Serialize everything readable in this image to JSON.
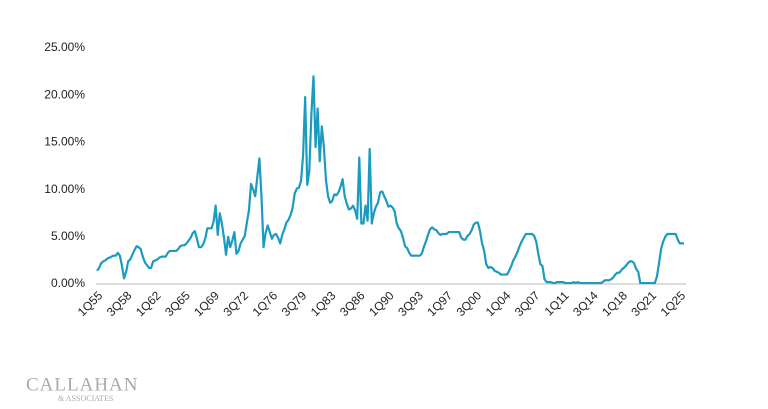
{
  "chart_data": {
    "type": "line",
    "categories": [
      "1Q55",
      null,
      null,
      null,
      null,
      null,
      null,
      null,
      null,
      null,
      null,
      null,
      null,
      null,
      "3Q58",
      null,
      null,
      null,
      null,
      null,
      null,
      null,
      null,
      null,
      null,
      null,
      null,
      null,
      "1Q62",
      null,
      null,
      null,
      null,
      null,
      null,
      null,
      null,
      null,
      null,
      null,
      null,
      null,
      "3Q65",
      null,
      null,
      null,
      null,
      null,
      null,
      null,
      null,
      null,
      null,
      null,
      null,
      null,
      "1Q69",
      null,
      null,
      null,
      null,
      null,
      null,
      null,
      null,
      null,
      null,
      null,
      null,
      null,
      "3Q72",
      null,
      null,
      null,
      null,
      null,
      null,
      null,
      null,
      null,
      null,
      null,
      null,
      null,
      "1Q76",
      null,
      null,
      null,
      null,
      null,
      null,
      null,
      null,
      null,
      null,
      null,
      null,
      null,
      "3Q79",
      null,
      null,
      null,
      null,
      null,
      null,
      null,
      null,
      null,
      null,
      null,
      null,
      null,
      "1Q83",
      null,
      null,
      null,
      null,
      null,
      null,
      null,
      null,
      null,
      null,
      null,
      null,
      null,
      "3Q86",
      null,
      null,
      null,
      null,
      null,
      null,
      null,
      null,
      null,
      null,
      null,
      null,
      null,
      "1Q90",
      null,
      null,
      null,
      null,
      null,
      null,
      null,
      null,
      null,
      null,
      null,
      null,
      null,
      "3Q93",
      null,
      null,
      null,
      null,
      null,
      null,
      null,
      null,
      null,
      null,
      null,
      null,
      null,
      "1Q97",
      null,
      null,
      null,
      null,
      null,
      null,
      null,
      null,
      null,
      null,
      null,
      null,
      null,
      "3Q00",
      null,
      null,
      null,
      null,
      null,
      null,
      null,
      null,
      null,
      null,
      null,
      null,
      null,
      "1Q04",
      null,
      null,
      null,
      null,
      null,
      null,
      null,
      null,
      null,
      null,
      null,
      null,
      null,
      "3Q07",
      null,
      null,
      null,
      null,
      null,
      null,
      null,
      null,
      null,
      null,
      null,
      null,
      null,
      "1Q11",
      null,
      null,
      null,
      null,
      null,
      null,
      null,
      null,
      null,
      null,
      null,
      null,
      null,
      "3Q14",
      null,
      null,
      null,
      null,
      null,
      null,
      null,
      null,
      null,
      null,
      null,
      null,
      null,
      "1Q18",
      null,
      null,
      null,
      null,
      null,
      null,
      null,
      null,
      null,
      null,
      null,
      null,
      null,
      "3Q21",
      null,
      null,
      null,
      null,
      null,
      null,
      null,
      null,
      null,
      null,
      null,
      null,
      null,
      "1Q25",
      null,
      null
    ],
    "values": [
      1.4,
      1.7,
      2.2,
      2.4,
      2.5,
      2.7,
      2.8,
      2.9,
      3.0,
      3.0,
      3.3,
      3.0,
      1.9,
      0.6,
      1.3,
      2.4,
      2.6,
      3.1,
      3.6,
      4.0,
      3.9,
      3.7,
      2.9,
      2.3,
      2.0,
      1.7,
      1.7,
      2.4,
      2.5,
      2.6,
      2.8,
      2.9,
      2.9,
      2.9,
      3.3,
      3.5,
      3.5,
      3.5,
      3.5,
      3.7,
      4.0,
      4.1,
      4.1,
      4.3,
      4.6,
      4.9,
      5.4,
      5.6,
      4.8,
      3.9,
      3.9,
      4.2,
      4.8,
      5.9,
      5.9,
      5.9,
      6.6,
      8.3,
      5.2,
      7.5,
      6.4,
      4.9,
      3.1,
      5.0,
      3.9,
      4.6,
      5.5,
      3.2,
      3.5,
      4.3,
      4.7,
      5.1,
      6.5,
      7.8,
      10.6,
      10.0,
      9.3,
      11.3,
      13.3,
      9.4,
      3.9,
      5.4,
      6.2,
      5.5,
      4.8,
      5.2,
      5.3,
      4.9,
      4.3,
      5.2,
      5.8,
      6.5,
      6.8,
      7.3,
      8.1,
      9.6,
      10.1,
      10.2,
      10.9,
      13.6,
      19.8,
      10.5,
      12.0,
      18.0,
      22.0,
      14.5,
      18.6,
      13.0,
      16.7,
      14.5,
      11.0,
      9.3,
      8.6,
      8.8,
      9.5,
      9.4,
      9.7,
      10.3,
      11.1,
      9.3,
      8.5,
      7.9,
      8.0,
      8.3,
      7.8,
      6.9,
      13.4,
      6.4,
      6.4,
      8.3,
      6.7,
      14.3,
      6.4,
      7.5,
      8.2,
      8.6,
      9.7,
      9.8,
      9.3,
      8.8,
      8.2,
      8.3,
      8.1,
      7.7,
      6.4,
      5.9,
      5.6,
      4.9,
      4.0,
      3.8,
      3.3,
      3.0,
      3.0,
      3.0,
      3.0,
      3.0,
      3.2,
      3.9,
      4.5,
      5.2,
      5.8,
      6.0,
      5.8,
      5.7,
      5.4,
      5.2,
      5.3,
      5.3,
      5.3,
      5.5,
      5.5,
      5.5,
      5.5,
      5.5,
      5.5,
      4.9,
      4.7,
      4.7,
      5.1,
      5.3,
      5.7,
      6.3,
      6.5,
      6.5,
      5.6,
      4.3,
      3.5,
      2.1,
      1.7,
      1.8,
      1.7,
      1.4,
      1.3,
      1.2,
      1.0,
      1.0,
      1.0,
      1.0,
      1.4,
      1.9,
      2.5,
      2.9,
      3.4,
      4.0,
      4.5,
      4.9,
      5.3,
      5.3,
      5.3,
      5.3,
      5.1,
      4.5,
      3.2,
      2.1,
      1.9,
      0.5,
      0.2,
      0.2,
      0.2,
      0.1,
      0.1,
      0.2,
      0.2,
      0.2,
      0.2,
      0.1,
      0.1,
      0.1,
      0.1,
      0.2,
      0.1,
      0.2,
      0.1,
      0.1,
      0.1,
      0.1,
      0.1,
      0.1,
      0.1,
      0.1,
      0.1,
      0.1,
      0.1,
      0.2,
      0.4,
      0.4,
      0.4,
      0.5,
      0.7,
      1.0,
      1.2,
      1.2,
      1.5,
      1.7,
      1.9,
      2.2,
      2.4,
      2.4,
      2.2,
      1.6,
      1.3,
      0.1,
      0.1,
      0.1,
      0.1,
      0.1,
      0.1,
      0.1,
      0.1,
      0.8,
      2.2,
      3.7,
      4.5,
      5.0,
      5.3,
      5.3,
      5.3,
      5.3,
      5.3,
      4.7,
      4.3,
      4.3,
      4.3
    ],
    "color": "#1a9bbf",
    "ylim": [
      0,
      25
    ],
    "yticks": [
      {
        "value": 0,
        "label": "0.00%"
      },
      {
        "value": 5,
        "label": "5.00%"
      },
      {
        "value": 10,
        "label": "10.00%"
      },
      {
        "value": 15,
        "label": "15.00%"
      },
      {
        "value": 20,
        "label": "20.00%"
      },
      {
        "value": 25,
        "label": "25.00%"
      }
    ],
    "grid": false
  },
  "logo": {
    "name": "CALLAHAN",
    "tagline": "& ASSOCIATES"
  }
}
